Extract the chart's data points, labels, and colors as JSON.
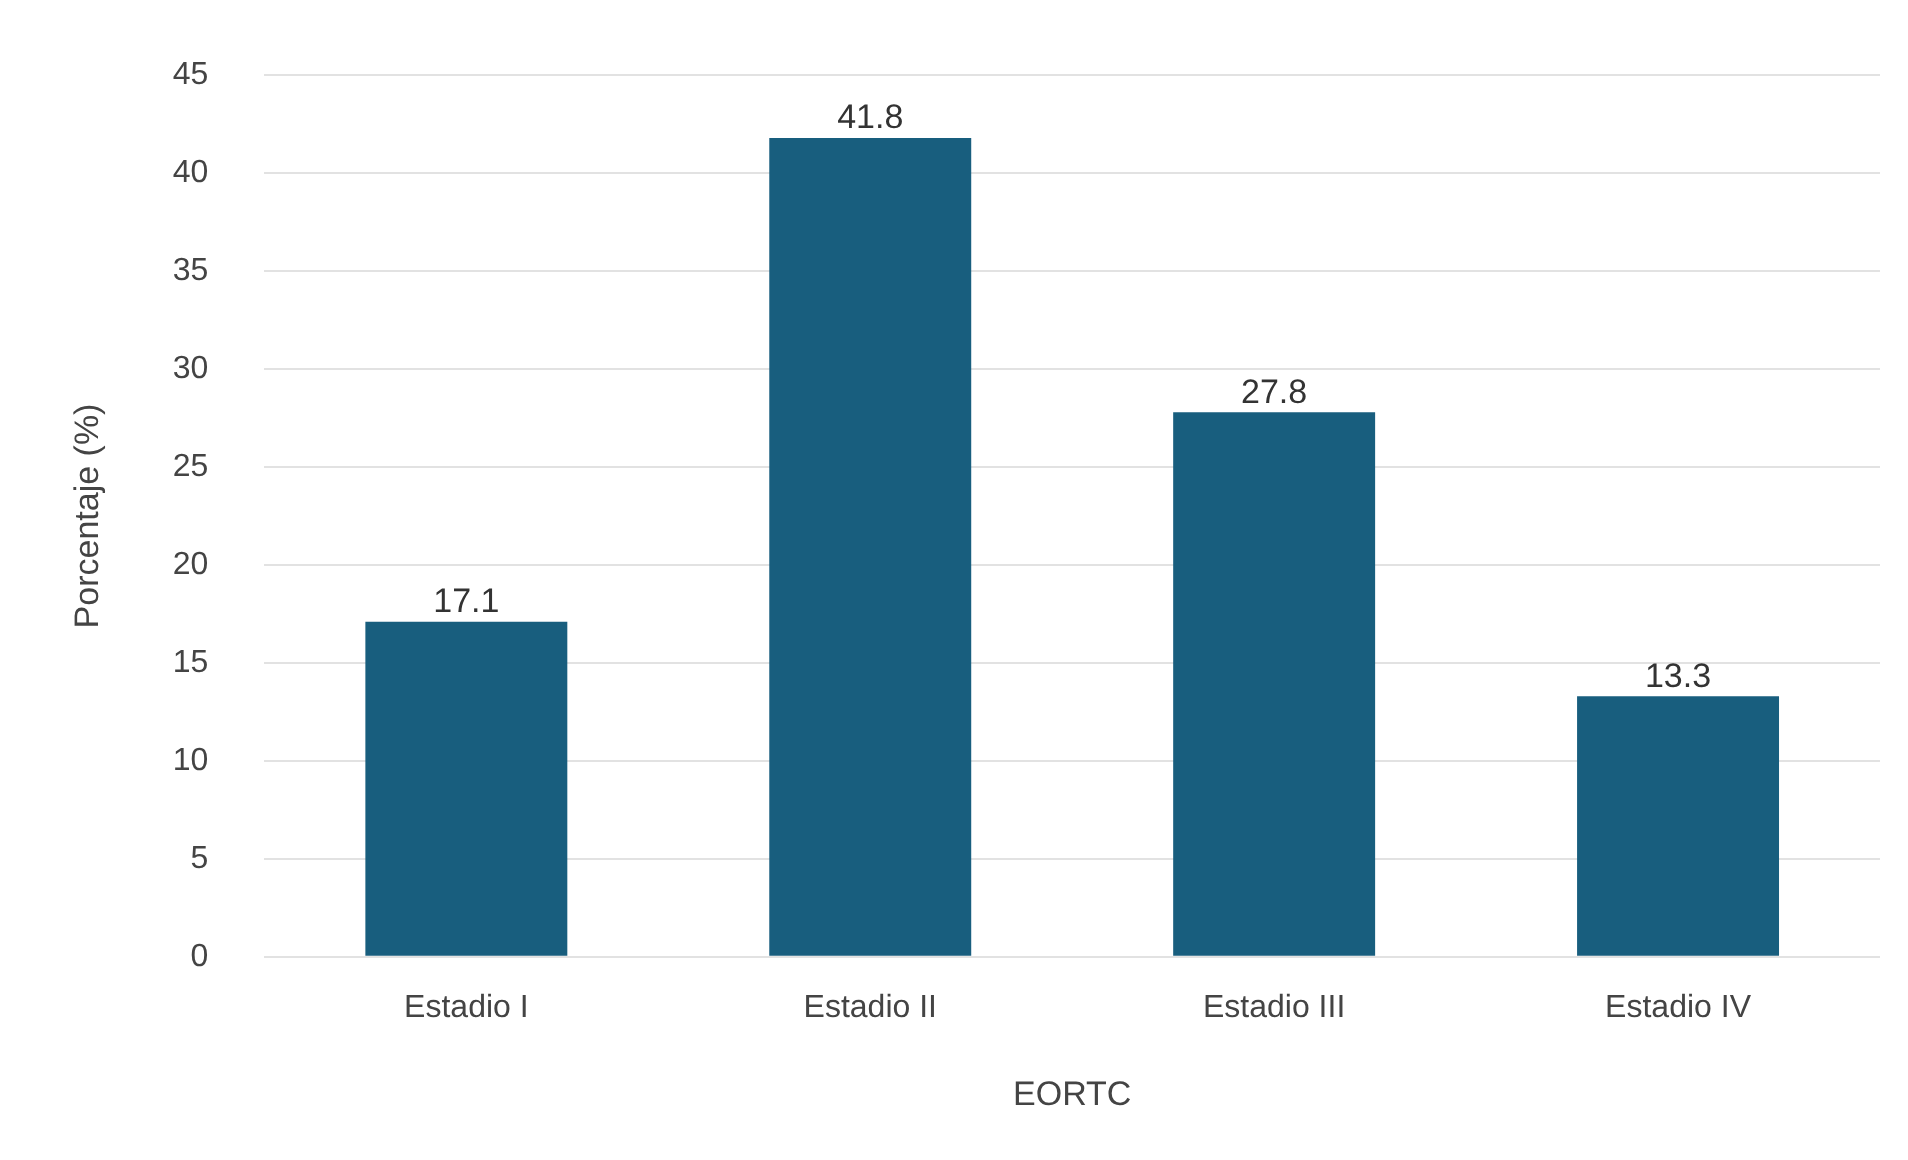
{
  "chart_data": {
    "type": "bar",
    "xlabel": "EORTC",
    "ylabel": "Porcentaje (%)",
    "categories": [
      "Estadio I",
      "Estadio II",
      "Estadio III",
      "Estadio IV"
    ],
    "values": [
      17.1,
      41.8,
      27.8,
      13.3
    ],
    "color": "#185e7e",
    "ylim": [
      0,
      45
    ],
    "yticks": [
      0,
      5,
      10,
      15,
      20,
      25,
      30,
      35,
      40,
      45
    ],
    "grid": "y",
    "data_labels": true,
    "legend": false
  }
}
